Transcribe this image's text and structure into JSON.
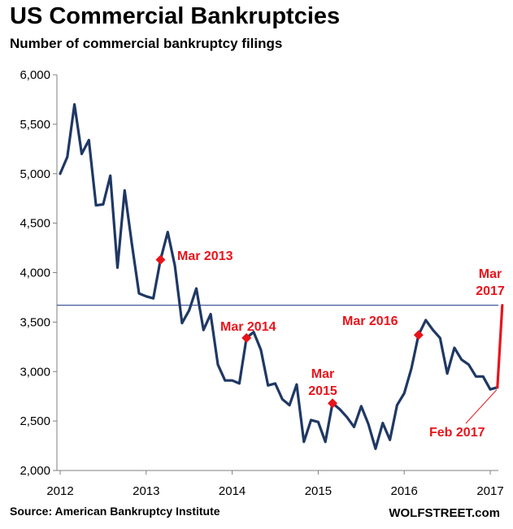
{
  "header": {
    "title": "US Commercial Bankruptcies",
    "subtitle": "Number of commercial bankruptcy filings"
  },
  "footer": {
    "source": "Source: American Bankruptcy Institute",
    "brand": "WOLFSTREET.com"
  },
  "colors": {
    "line": "#1f3864",
    "accent": "#e8141b",
    "axis": "#7f7f7f",
    "reference_line": "#1f3a8a"
  },
  "chart_data": {
    "type": "line",
    "title": "US Commercial Bankruptcies",
    "subtitle": "Number of commercial bankruptcy filings",
    "xlabel": "",
    "ylabel": "",
    "ylim": [
      2000,
      6000
    ],
    "yticks": [
      2000,
      2500,
      3000,
      3500,
      4000,
      4500,
      5000,
      5500,
      6000
    ],
    "ytick_labels": [
      "2,000",
      "2,500",
      "3,000",
      "3,500",
      "4,000",
      "4,500",
      "5,000",
      "5,500",
      "6,000"
    ],
    "xlim": [
      2012.0,
      2017.167
    ],
    "xticks": [
      2012,
      2013,
      2014,
      2015,
      2016,
      2017
    ],
    "xtick_labels": [
      "2012",
      "2013",
      "2014",
      "2015",
      "2016",
      "2017"
    ],
    "grid": false,
    "series": [
      {
        "name": "Commercial bankruptcy filings",
        "x_start": "Jan 2012",
        "frequency": "monthly",
        "values": [
          5000,
          5170,
          5700,
          5200,
          5340,
          4680,
          4690,
          4980,
          4050,
          4830,
          4290,
          3790,
          3760,
          3740,
          4130,
          4410,
          4070,
          3490,
          3620,
          3840,
          3420,
          3580,
          3070,
          2910,
          2910,
          2880,
          3340,
          3400,
          3220,
          2860,
          2880,
          2720,
          2660,
          2870,
          2290,
          2510,
          2490,
          2290,
          2680,
          2620,
          2540,
          2440,
          2650,
          2470,
          2220,
          2480,
          2310,
          2660,
          2780,
          3030,
          3370,
          3520,
          3420,
          3340,
          2980,
          3240,
          3120,
          3070,
          2950,
          2950,
          2820,
          2840
        ]
      },
      {
        "name": "Mar 2017 projection",
        "points": [
          {
            "label": "Feb 2017",
            "value": 2840
          },
          {
            "label": "Mar 2017",
            "value": 3670
          }
        ]
      }
    ],
    "reference_line": {
      "value": 3670
    },
    "highlights": [
      {
        "label": "Mar 2013",
        "index": 14
      },
      {
        "label": "Mar 2014",
        "index": 26
      },
      {
        "label": "Mar 2015",
        "index": 38
      },
      {
        "label": "Mar 2016",
        "index": 50
      }
    ],
    "annotations": [
      {
        "id": "mar2013",
        "text": "Mar 2013"
      },
      {
        "id": "mar2014",
        "text": "Mar 2014"
      },
      {
        "id": "mar2015a",
        "text": "Mar"
      },
      {
        "id": "mar2015b",
        "text": "2015"
      },
      {
        "id": "mar2016",
        "text": "Mar 2016"
      },
      {
        "id": "mar2017a",
        "text": "Mar"
      },
      {
        "id": "mar2017b",
        "text": "2017"
      },
      {
        "id": "feb2017",
        "text": "Feb 2017"
      }
    ]
  }
}
